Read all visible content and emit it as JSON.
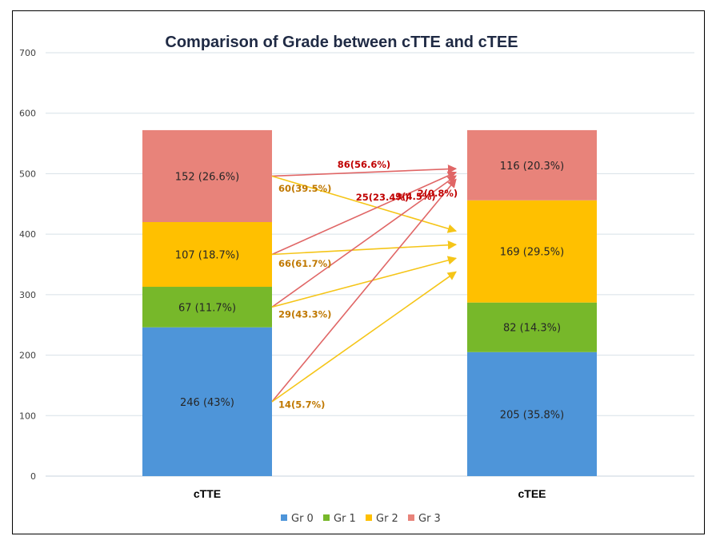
{
  "chart_data": {
    "type": "bar",
    "stacked": true,
    "title": "Comparison of Grade between cTTE and cTEE",
    "xlabel": "",
    "ylabel": "",
    "ylim": [
      0,
      700
    ],
    "yticks": [
      0,
      100,
      200,
      300,
      400,
      500,
      600,
      700
    ],
    "grid": true,
    "legend_position": "bottom",
    "categories": [
      "cTTE",
      "cTEE"
    ],
    "series": [
      {
        "name": "Gr 0",
        "color": "#4e95d9",
        "values": [
          246,
          205
        ],
        "labels": [
          "246 (43%)",
          "205 (35.8%)"
        ]
      },
      {
        "name": "Gr 1",
        "color": "#77b82a",
        "values": [
          67,
          82
        ],
        "labels": [
          "67 (11.7%)",
          "82 (14.3%)"
        ]
      },
      {
        "name": "Gr 2",
        "color": "#ffc000",
        "values": [
          107,
          169
        ],
        "labels": [
          "107 (18.7%)",
          "169 (29.5%)"
        ]
      },
      {
        "name": "Gr 3",
        "color": "#e8837a",
        "values": [
          152,
          116
        ],
        "labels": [
          "152 (26.6%)",
          "116 (20.3%)"
        ]
      }
    ],
    "flows": [
      {
        "from": "Gr 3",
        "to": "Gr 3",
        "label": "86(56.6%)",
        "color": "#e06666",
        "label_color": "#c00000"
      },
      {
        "from": "Gr 3",
        "to": "Gr 2",
        "label": "60(39.5%)",
        "color": "#f5c518",
        "label_color": "#c07800"
      },
      {
        "from": "Gr 2",
        "to": "Gr 3",
        "label": "25(23.4%)",
        "color": "#e06666",
        "label_color": "#c00000"
      },
      {
        "from": "Gr 2",
        "to": "Gr 2",
        "label": "66(61.7%)",
        "color": "#f5c518",
        "label_color": "#c07800"
      },
      {
        "from": "Gr 1",
        "to": "Gr 3",
        "label": "3(4.5%)",
        "color": "#e06666",
        "label_color": "#c00000"
      },
      {
        "from": "Gr 1",
        "to": "Gr 2",
        "label": "29(43.3%)",
        "color": "#f5c518",
        "label_color": "#c07800"
      },
      {
        "from": "Gr 0",
        "to": "Gr 3",
        "label": "2(0.8%)",
        "color": "#e06666",
        "label_color": "#c00000"
      },
      {
        "from": "Gr 0",
        "to": "Gr 2",
        "label": "14(5.7%)",
        "color": "#f5c518",
        "label_color": "#c07800"
      }
    ]
  }
}
